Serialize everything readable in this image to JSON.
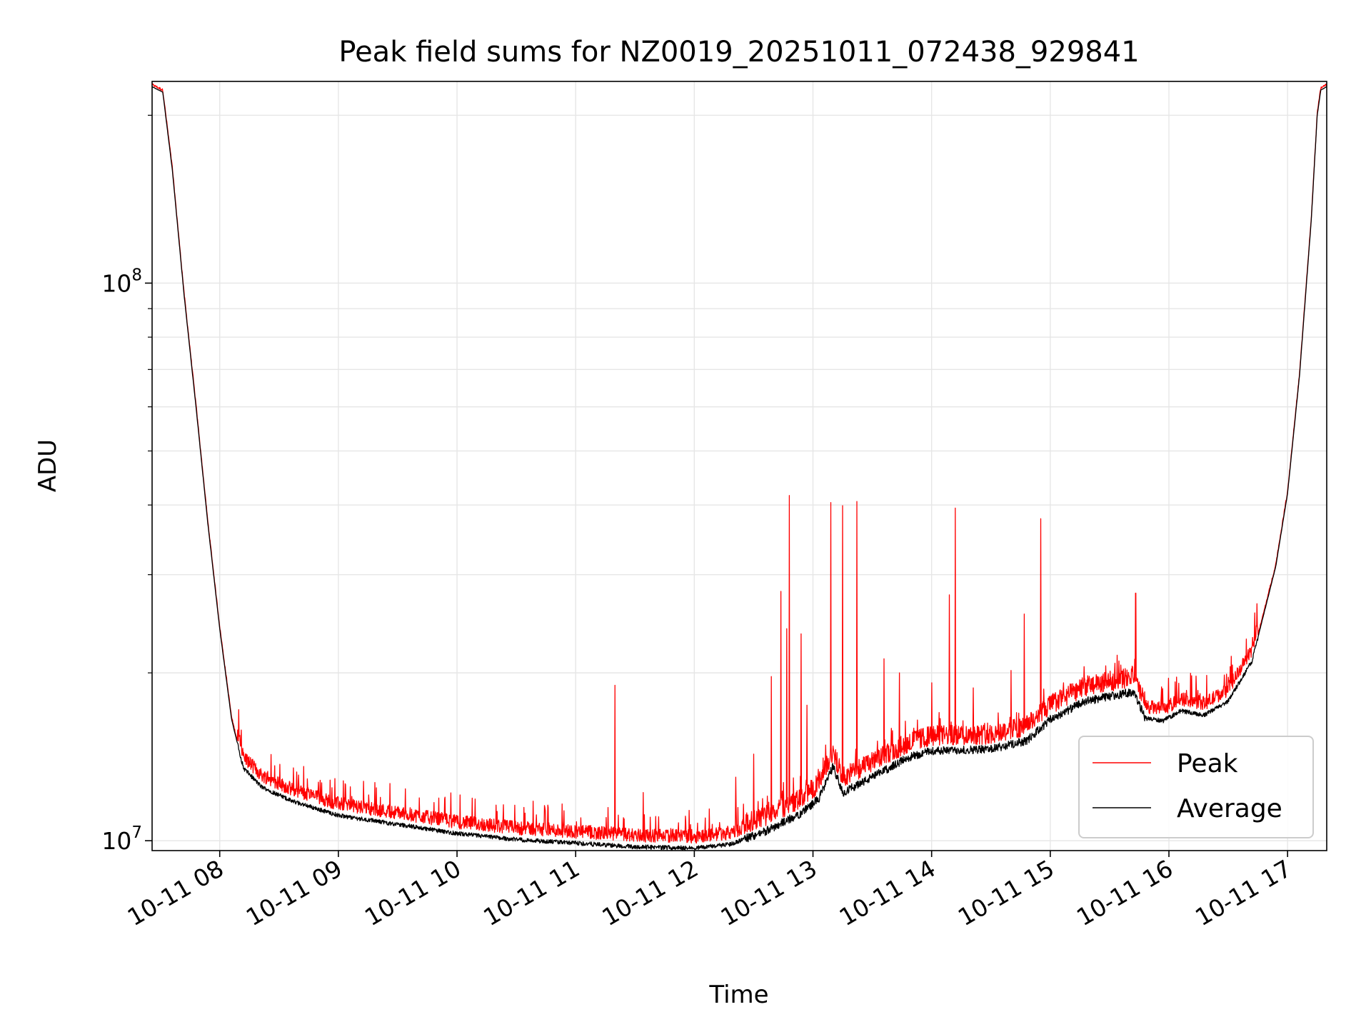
{
  "chart_data": {
    "type": "line",
    "title": "Peak field sums for NZ0019_20251011_072438_929841",
    "xlabel": "Time",
    "ylabel": "ADU",
    "yscale": "log",
    "ylim": [
      9600000,
      230000000
    ],
    "xlim_hours": [
      7.43,
      17.33
    ],
    "x_ticks": [
      {
        "label": "10-11 08",
        "hour": 8
      },
      {
        "label": "10-11 09",
        "hour": 9
      },
      {
        "label": "10-11 10",
        "hour": 10
      },
      {
        "label": "10-11 11",
        "hour": 11
      },
      {
        "label": "10-11 12",
        "hour": 12
      },
      {
        "label": "10-11 13",
        "hour": 13
      },
      {
        "label": "10-11 14",
        "hour": 14
      },
      {
        "label": "10-11 15",
        "hour": 15
      },
      {
        "label": "10-11 16",
        "hour": 16
      },
      {
        "label": "10-11 17",
        "hour": 17
      }
    ],
    "y_ticks": [
      {
        "base": "10",
        "exp": "7",
        "value": 10000000
      },
      {
        "base": "10",
        "exp": "8",
        "value": 100000000
      }
    ],
    "grid": true,
    "legend_position": "lower-right",
    "series": [
      {
        "name": "Peak",
        "color": "#ff0000"
      },
      {
        "name": "Average",
        "color": "#000000"
      }
    ],
    "average_curve": [
      [
        7.43,
        225000000
      ],
      [
        7.52,
        220000000
      ],
      [
        7.6,
        160000000
      ],
      [
        7.7,
        95000000
      ],
      [
        7.8,
        60000000
      ],
      [
        7.9,
        37000000
      ],
      [
        8.0,
        24000000
      ],
      [
        8.1,
        16500000
      ],
      [
        8.2,
        13500000
      ],
      [
        8.35,
        12500000
      ],
      [
        8.6,
        11800000
      ],
      [
        9.0,
        11100000
      ],
      [
        9.5,
        10700000
      ],
      [
        10.0,
        10300000
      ],
      [
        10.5,
        10050000
      ],
      [
        11.0,
        9900000
      ],
      [
        11.5,
        9750000
      ],
      [
        12.0,
        9700000
      ],
      [
        12.3,
        9850000
      ],
      [
        12.6,
        10400000
      ],
      [
        12.9,
        11200000
      ],
      [
        13.05,
        11900000
      ],
      [
        13.17,
        13600000
      ],
      [
        13.25,
        12200000
      ],
      [
        13.5,
        13000000
      ],
      [
        13.8,
        14100000
      ],
      [
        14.0,
        14500000
      ],
      [
        14.5,
        14600000
      ],
      [
        14.8,
        15100000
      ],
      [
        15.0,
        16500000
      ],
      [
        15.3,
        17800000
      ],
      [
        15.7,
        18500000
      ],
      [
        15.8,
        16600000
      ],
      [
        15.95,
        16400000
      ],
      [
        16.1,
        17100000
      ],
      [
        16.3,
        16800000
      ],
      [
        16.5,
        17800000
      ],
      [
        16.7,
        21000000
      ],
      [
        16.9,
        31000000
      ],
      [
        17.0,
        42000000
      ],
      [
        17.1,
        68000000
      ],
      [
        17.2,
        130000000
      ],
      [
        17.25,
        200000000
      ],
      [
        17.28,
        222000000
      ],
      [
        17.33,
        225000000
      ]
    ],
    "peak_spikes": [
      [
        11.33,
        19000000
      ],
      [
        11.57,
        12200000
      ],
      [
        12.35,
        13000000
      ],
      [
        12.5,
        14300000
      ],
      [
        12.65,
        19700000
      ],
      [
        12.73,
        28000000
      ],
      [
        12.78,
        24000000
      ],
      [
        12.8,
        41600000
      ],
      [
        12.9,
        23500000
      ],
      [
        12.95,
        17500000
      ],
      [
        13.15,
        40400000
      ],
      [
        13.25,
        39900000
      ],
      [
        13.37,
        40600000
      ],
      [
        13.6,
        21200000
      ],
      [
        13.73,
        20000000
      ],
      [
        14.0,
        19200000
      ],
      [
        14.15,
        27600000
      ],
      [
        14.2,
        39500000
      ],
      [
        14.35,
        18800000
      ],
      [
        14.67,
        20200000
      ],
      [
        14.78,
        25500000
      ],
      [
        14.92,
        37800000
      ],
      [
        15.72,
        27800000
      ]
    ]
  }
}
